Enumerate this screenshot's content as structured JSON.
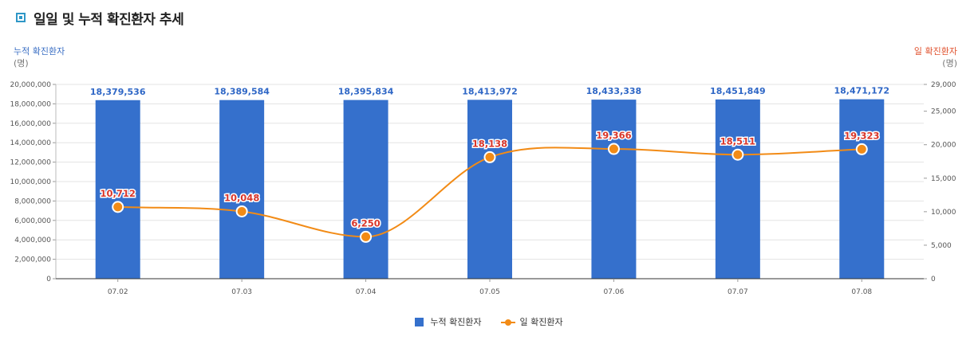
{
  "header": {
    "title": "일일 및 누적 확진환자 추세"
  },
  "colors": {
    "bar": "#3570cc",
    "line": "#f28b16",
    "bar_label": "#2f67c6",
    "line_label": "#d9362a",
    "title_icon": "#2f97c7"
  },
  "chart_data": {
    "type": "bar",
    "title": "일일 및 누적 확진환자 추세",
    "categories": [
      "07.02",
      "07.03",
      "07.04",
      "07.05",
      "07.06",
      "07.07",
      "07.08"
    ],
    "y_left_label": "누적 확진환자",
    "y_left_unit": "(명)",
    "y_right_label": "일 확진환자",
    "y_right_unit": "(명)",
    "ylim_left": [
      0,
      20000000
    ],
    "ylim_right": [
      0,
      29000
    ],
    "yticks_left": [
      "0",
      "2,000,000",
      "4,000,000",
      "6,000,000",
      "8,000,000",
      "10,000,000",
      "12,000,000",
      "14,000,000",
      "16,000,000",
      "18,000,000",
      "20,000,000"
    ],
    "yticks_right": [
      "0",
      "5,000",
      "10,000",
      "15,000",
      "20,000",
      "25,000",
      "29,000"
    ],
    "grid": true,
    "legend_position": "bottom",
    "series": [
      {
        "name": "누적 확진환자",
        "type": "bar",
        "axis": "left",
        "values": [
          18379536,
          18389584,
          18395834,
          18413972,
          18433338,
          18451849,
          18471172
        ],
        "labels": [
          "18,379,536",
          "18,389,584",
          "18,395,834",
          "18,413,972",
          "18,433,338",
          "18,451,849",
          "18,471,172"
        ]
      },
      {
        "name": "일 확진환자",
        "type": "line",
        "axis": "right",
        "values": [
          10712,
          10048,
          6250,
          18138,
          19366,
          18511,
          19323
        ],
        "labels": [
          "10,712",
          "10,048",
          "6,250",
          "18,138",
          "19,366",
          "18,511",
          "19,323"
        ]
      }
    ]
  }
}
